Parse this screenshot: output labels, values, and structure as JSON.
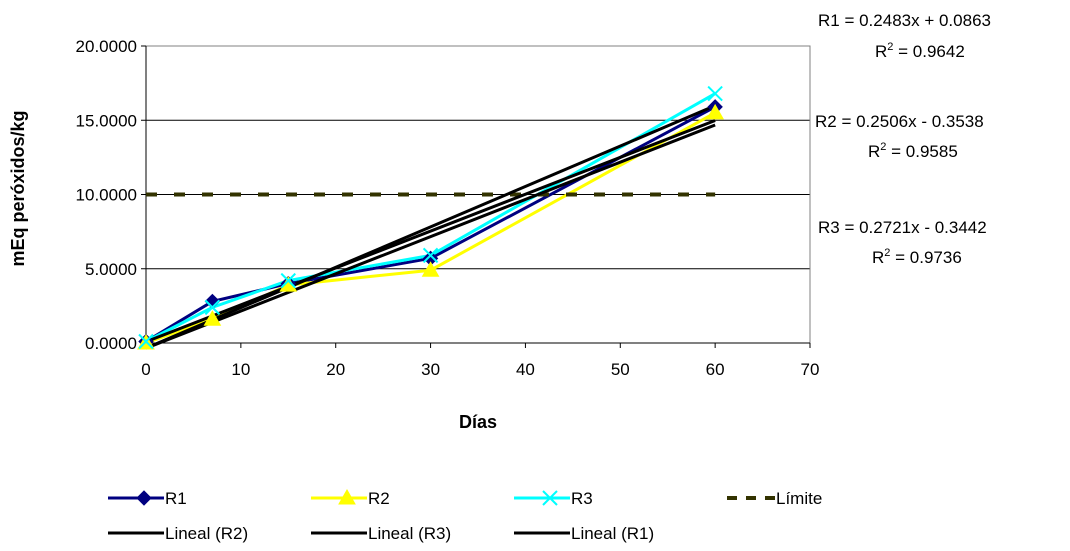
{
  "chart_data": {
    "type": "line",
    "xlabel": "Días",
    "ylabel": "mEq peróxidos/kg",
    "xlim": [
      0,
      70
    ],
    "ylim": [
      0,
      20
    ],
    "xticks": [
      "0",
      "10",
      "20",
      "30",
      "40",
      "50",
      "60",
      "70"
    ],
    "yticks": [
      "0.0000",
      "5.0000",
      "10.0000",
      "15.0000",
      "20.0000"
    ],
    "grid": "horizontal",
    "legend_position": "bottom",
    "x": [
      0,
      7,
      15,
      30,
      60
    ],
    "series": [
      {
        "name": "R1",
        "values": [
          0.1,
          2.8,
          4.0,
          5.7,
          15.9
        ],
        "color": "#000080",
        "marker": "diamond"
      },
      {
        "name": "R2",
        "values": [
          0.0,
          1.6,
          3.9,
          4.9,
          15.5
        ],
        "color": "#ffff00",
        "marker": "triangle"
      },
      {
        "name": "R3",
        "values": [
          0.1,
          2.4,
          4.2,
          5.9,
          16.8
        ],
        "color": "#00ffff",
        "marker": "x"
      },
      {
        "name": "Límite",
        "values": [
          10,
          10,
          10,
          10,
          10
        ],
        "color": "#333300",
        "dashed": true,
        "x_range": [
          0,
          60
        ]
      }
    ],
    "trendlines": [
      {
        "name": "Lineal (R2)",
        "slope": 0.2506,
        "intercept": -0.3538,
        "color": "#000000"
      },
      {
        "name": "Lineal (R3)",
        "slope": 0.2721,
        "intercept": -0.3442,
        "color": "#000000"
      },
      {
        "name": "Lineal (R1)",
        "slope": 0.2483,
        "intercept": 0.0863,
        "color": "#000000"
      }
    ],
    "equations": [
      {
        "eq": "R1 = 0.2483x + 0.0863",
        "r2_label": "R",
        "r2_exp": "2",
        "r2_value": " = 0.9642"
      },
      {
        "eq": "R2 = 0.2506x - 0.3538",
        "r2_label": "R",
        "r2_exp": "2",
        "r2_value": " = 0.9585"
      },
      {
        "eq": "R3 = 0.2721x - 0.3442",
        "r2_label": "R",
        "r2_exp": "2",
        "r2_value": " = 0.9736"
      }
    ],
    "legend": [
      "R1",
      "R2",
      "R3",
      "Límite",
      "Lineal (R2)",
      "Lineal (R3)",
      "Lineal (R1)"
    ]
  }
}
